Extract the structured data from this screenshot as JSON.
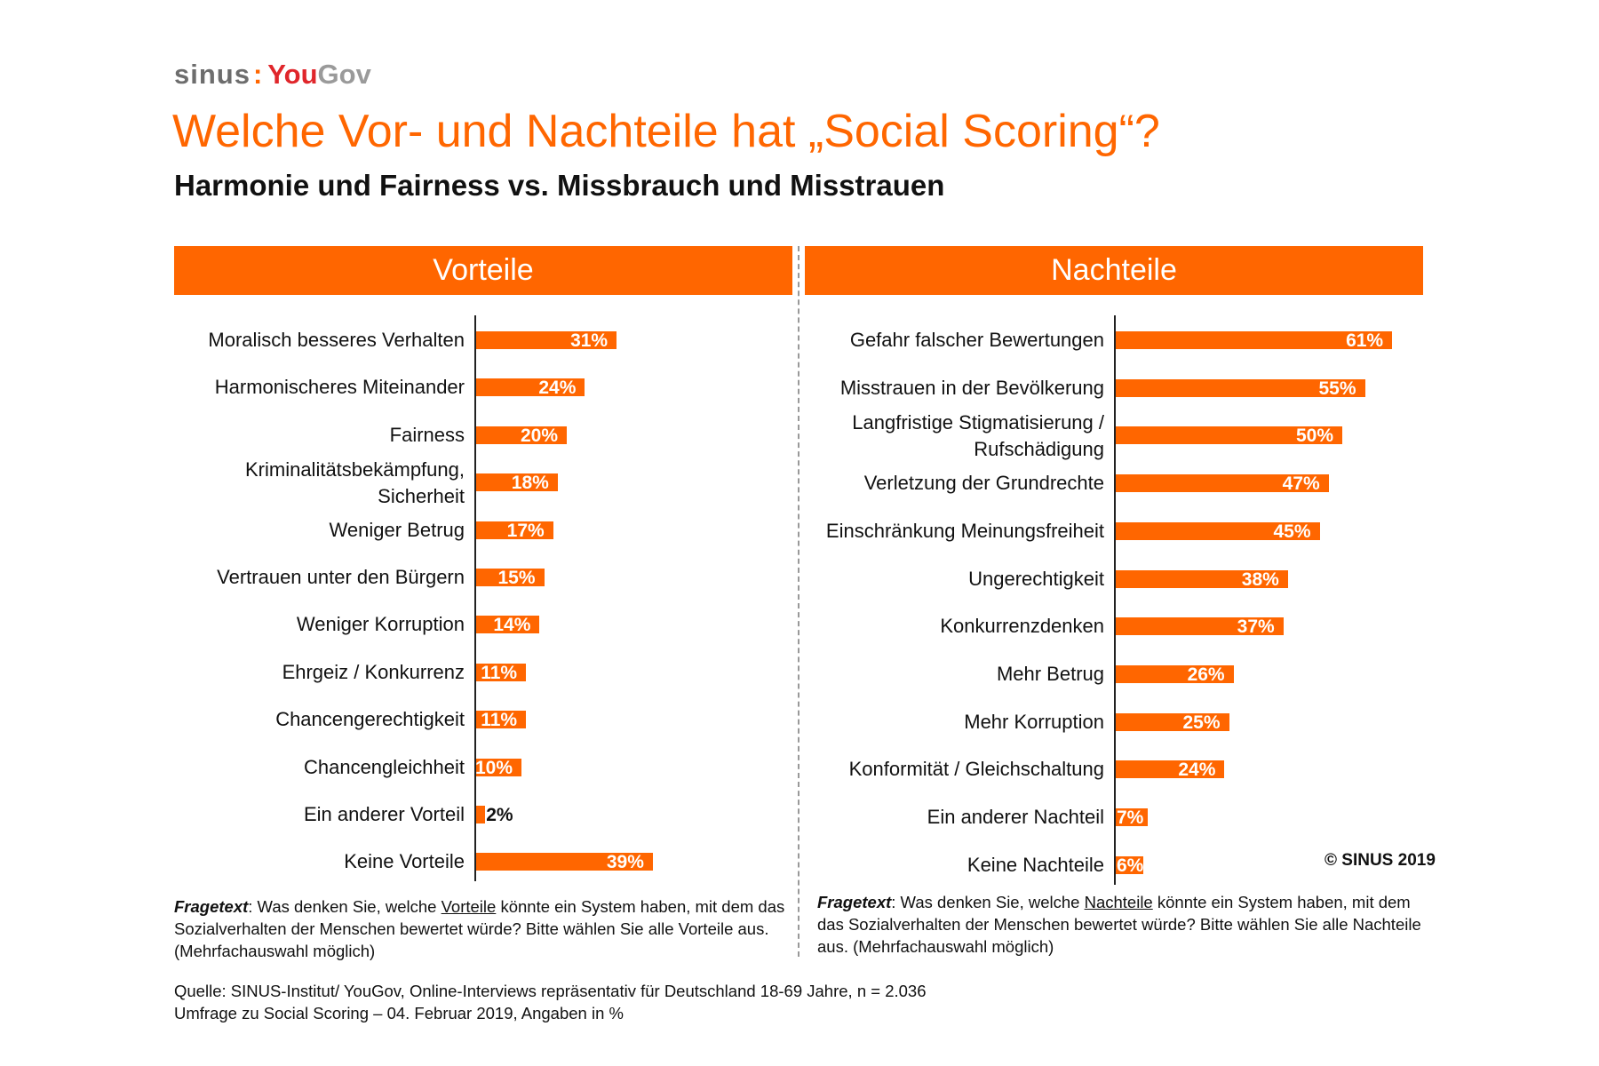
{
  "logo": {
    "sinus": "sinus",
    "colon": ":",
    "you": "You",
    "gov": "Gov"
  },
  "title": "Welche Vor- und Nachteile hat „Social Scoring“?",
  "subtitle": "Harmonie und Fairness vs. Missbrauch und Misstrauen",
  "chart_data": [
    {
      "type": "bar",
      "orientation": "horizontal",
      "title": "Vorteile",
      "categories": [
        "Moralisch besseres Verhalten",
        "Harmonischeres Miteinander",
        "Fairness",
        "Kriminalitätsbekämpfung,\nSicherheit",
        "Weniger Betrug",
        "Vertrauen unter den Bürgern",
        "Weniger Korruption",
        "Ehrgeiz / Konkurrenz",
        "Chancengerechtigkeit",
        "Chancengleichheit",
        "Ein anderer Vorteil",
        "Keine Vorteile"
      ],
      "values": [
        31,
        24,
        20,
        18,
        17,
        15,
        14,
        11,
        11,
        10,
        2,
        39
      ],
      "labels": [
        "31%",
        "24%",
        "20%",
        "18%",
        "17%",
        "15%",
        "14%",
        "11%",
        "11%",
        "10%",
        "2%",
        "39%"
      ],
      "unit": "%",
      "color": "#ff6600"
    },
    {
      "type": "bar",
      "orientation": "horizontal",
      "title": "Nachteile",
      "categories": [
        "Gefahr falscher Bewertungen",
        "Misstrauen in der Bevölkerung",
        "Langfristige Stigmatisierung /\nRufschädigung",
        "Verletzung der Grundrechte",
        "Einschränkung Meinungsfreiheit",
        "Ungerechtigkeit",
        "Konkurrenzdenken",
        "Mehr Betrug",
        "Mehr Korruption",
        "Konformität / Gleichschaltung",
        "Ein anderer Nachteil",
        "Keine Nachteile"
      ],
      "values": [
        61,
        55,
        50,
        47,
        45,
        38,
        37,
        26,
        25,
        24,
        7,
        6
      ],
      "labels": [
        "61%",
        "55%",
        "50%",
        "47%",
        "45%",
        "38%",
        "37%",
        "26%",
        "25%",
        "24%",
        "7%",
        "6%"
      ],
      "unit": "%",
      "color": "#ff6600"
    }
  ],
  "frage_left": {
    "label": "Fragetext",
    "pre": ": Was denken Sie, welche ",
    "u": "Vorteile",
    "post": " könnte ein System haben, mit dem das Sozialverhalten der Menschen bewertet würde? Bitte wählen Sie alle Vorteile aus. (Mehrfachauswahl möglich)"
  },
  "frage_right": {
    "label": "Fragetext",
    "pre": ": Was denken Sie, welche ",
    "u": "Nachteile",
    "post": " könnte ein System haben, mit dem das Sozialverhalten der Menschen bewertet würde? Bitte wählen Sie alle Nachteile aus. (Mehrfachauswahl möglich)"
  },
  "source": {
    "line1": "Quelle: SINUS-Institut/ YouGov, Online-Interviews repräsentativ für Deutschland 18-69 Jahre, n = 2.036",
    "line2": "Umfrage zu Social Scoring – 04. Februar 2019, Angaben in %"
  },
  "copyright": "© SINUS 2019"
}
